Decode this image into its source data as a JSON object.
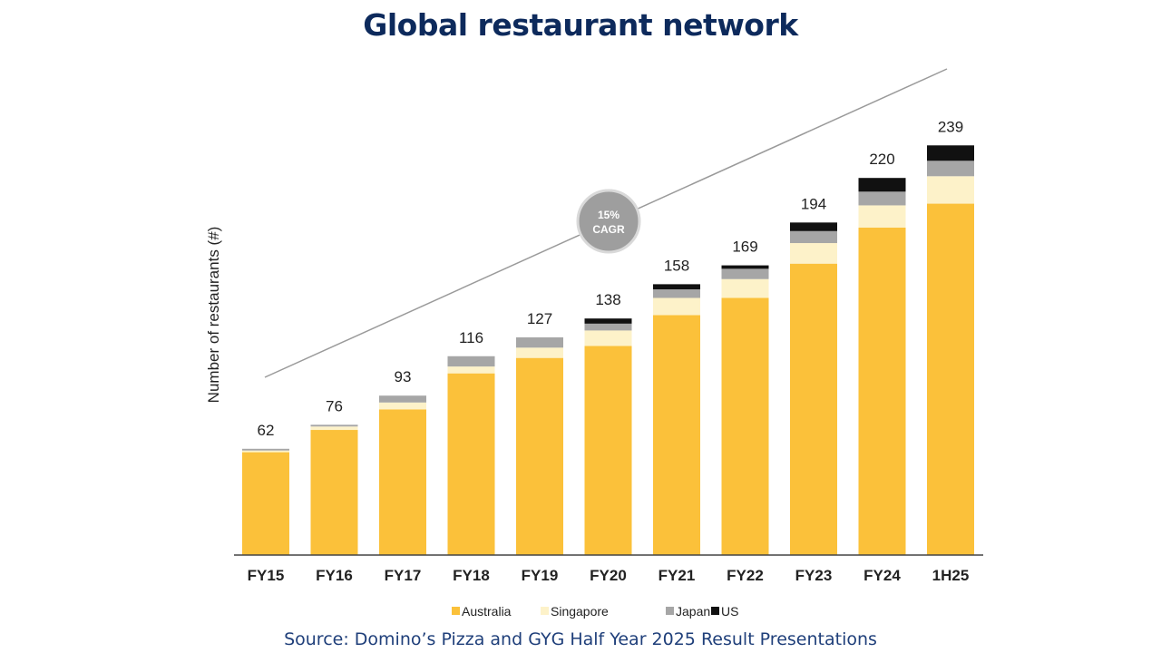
{
  "page": {
    "title": "Global restaurant network",
    "source": "Source: Domino’s Pizza and GYG Half Year 2025 Result Presentations"
  },
  "chart_data": {
    "type": "bar",
    "stacked": true,
    "title": "",
    "xlabel": "",
    "ylabel": "Number of restaurants (#)",
    "ylim": [
      0,
      250
    ],
    "grid": false,
    "legend_position": "bottom",
    "categories": [
      "FY15",
      "FY16",
      "FY17",
      "FY18",
      "FY19",
      "FY20",
      "FY21",
      "FY22",
      "FY23",
      "FY24",
      "1H25"
    ],
    "totals": [
      "62",
      "76",
      "93",
      "116",
      "127",
      "138",
      "158",
      "169",
      "194",
      "220",
      "239"
    ],
    "series": [
      {
        "name": "Australia",
        "color": "#fbc13a",
        "values": [
          60,
          73,
          85,
          106,
          115,
          122,
          140,
          150,
          170,
          191,
          205
        ]
      },
      {
        "name": "Singapore",
        "color": "#fdf2c9",
        "values": [
          1,
          2,
          4,
          4,
          6,
          9,
          10,
          11,
          12,
          13,
          16
        ]
      },
      {
        "name": "Japan",
        "color": "#a6a6a6",
        "values": [
          1,
          1,
          4,
          6,
          6,
          4,
          5,
          6,
          7,
          8,
          9
        ]
      },
      {
        "name": "US",
        "color": "#111111",
        "values": [
          0,
          0,
          0,
          0,
          0,
          3,
          3,
          2,
          5,
          8,
          9
        ]
      }
    ],
    "annotation": {
      "label_line1": "15%",
      "label_line2": "CAGR",
      "color": "#9e9e9e"
    }
  }
}
